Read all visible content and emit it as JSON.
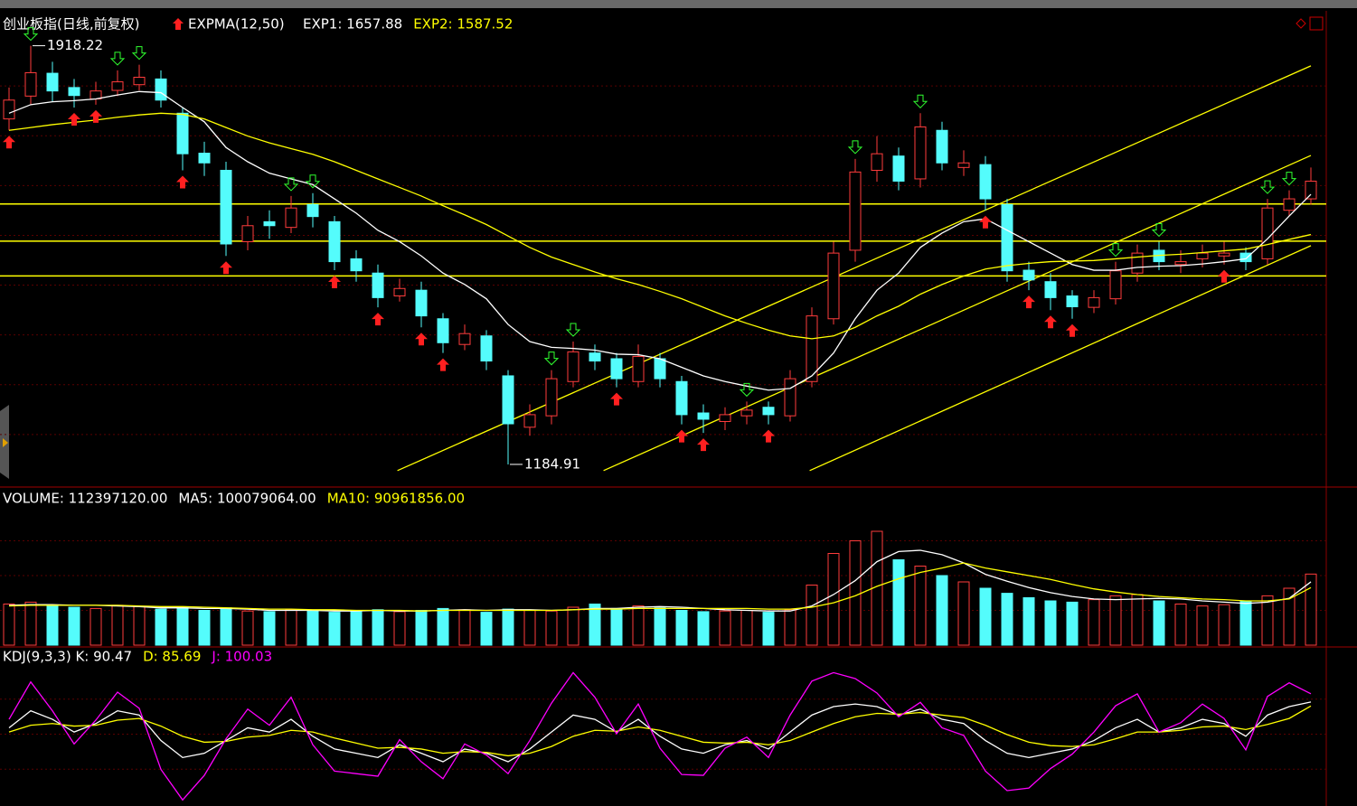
{
  "chart_data": [
    {
      "type": "candlestick",
      "title": "创业板指(日线,前复权)",
      "indicator": "EXPMA(12,50)",
      "legend": [
        {
          "text": "EXP1: 1657.88",
          "color": "#ffffff"
        },
        {
          "text": "EXP2: 1587.52",
          "color": "#ffff00"
        }
      ],
      "open": [
        1790,
        1830,
        1870,
        1845,
        1825,
        1840,
        1850,
        1860,
        1800,
        1730,
        1700,
        1575,
        1610,
        1600,
        1640,
        1610,
        1545,
        1520,
        1480,
        1490,
        1440,
        1395,
        1410,
        1340,
        1250,
        1270,
        1330,
        1380,
        1370,
        1330,
        1370,
        1330,
        1275,
        1260,
        1270,
        1285,
        1270,
        1330,
        1440,
        1560,
        1700,
        1725,
        1685,
        1770,
        1705,
        1710,
        1640,
        1525,
        1505,
        1480,
        1460,
        1475,
        1520,
        1560,
        1535,
        1545,
        1550,
        1555,
        1545,
        1630,
        1650
      ],
      "high": [
        1845,
        1918.22,
        1890,
        1860,
        1855,
        1875,
        1885,
        1875,
        1810,
        1750,
        1715,
        1620,
        1630,
        1655,
        1660,
        1620,
        1560,
        1535,
        1510,
        1505,
        1450,
        1430,
        1420,
        1350,
        1290,
        1350,
        1400,
        1395,
        1380,
        1395,
        1380,
        1340,
        1290,
        1285,
        1295,
        1295,
        1350,
        1460,
        1575,
        1720,
        1760,
        1740,
        1800,
        1785,
        1735,
        1725,
        1650,
        1540,
        1520,
        1490,
        1490,
        1540,
        1570,
        1575,
        1560,
        1570,
        1575,
        1565,
        1650,
        1665,
        1705
      ],
      "low": [
        1770,
        1815,
        1820,
        1810,
        1815,
        1830,
        1840,
        1810,
        1700,
        1690,
        1550,
        1560,
        1580,
        1590,
        1600,
        1525,
        1505,
        1460,
        1470,
        1425,
        1380,
        1385,
        1350,
        1184.91,
        1235,
        1255,
        1320,
        1350,
        1320,
        1320,
        1320,
        1255,
        1240,
        1245,
        1255,
        1255,
        1260,
        1320,
        1430,
        1540,
        1680,
        1665,
        1670,
        1700,
        1690,
        1630,
        1505,
        1490,
        1455,
        1440,
        1450,
        1465,
        1505,
        1525,
        1520,
        1530,
        1535,
        1525,
        1535,
        1620,
        1640
      ],
      "close": [
        1823,
        1871,
        1839,
        1831,
        1839,
        1855,
        1863,
        1823,
        1729,
        1713,
        1571,
        1603,
        1603,
        1634,
        1619,
        1540,
        1524,
        1477,
        1493,
        1445,
        1398,
        1414,
        1366,
        1256,
        1272,
        1335,
        1382,
        1366,
        1335,
        1374,
        1335,
        1272,
        1264,
        1272,
        1280,
        1272,
        1335,
        1445,
        1555,
        1697,
        1729,
        1681,
        1776,
        1713,
        1713,
        1650,
        1524,
        1508,
        1477,
        1461,
        1477,
        1524,
        1555,
        1540,
        1540,
        1555,
        1555,
        1540,
        1634,
        1650,
        1681
      ],
      "up_color": "#ff3c3c",
      "down_color": "#54fcfc",
      "series": [
        {
          "color": "#ffffff",
          "values": [
            1800,
            1815,
            1820,
            1822,
            1825,
            1832,
            1838,
            1836,
            1810,
            1785,
            1740,
            1715,
            1695,
            1685,
            1675,
            1650,
            1625,
            1595,
            1575,
            1550,
            1520,
            1500,
            1475,
            1430,
            1400,
            1390,
            1388,
            1385,
            1378,
            1377,
            1370,
            1355,
            1340,
            1330,
            1322,
            1315,
            1318,
            1340,
            1380,
            1440,
            1490,
            1520,
            1565,
            1590,
            1610,
            1615,
            1595,
            1575,
            1555,
            1535,
            1525,
            1525,
            1530,
            1532,
            1533,
            1536,
            1540,
            1545,
            1580,
            1620,
            1657.88
          ]
        },
        {
          "color": "#ffff00",
          "values": [
            1770,
            1775,
            1780,
            1784,
            1788,
            1793,
            1797,
            1800,
            1798,
            1790,
            1775,
            1760,
            1748,
            1738,
            1728,
            1715,
            1700,
            1685,
            1670,
            1655,
            1638,
            1622,
            1605,
            1585,
            1565,
            1548,
            1535,
            1522,
            1510,
            1500,
            1488,
            1475,
            1460,
            1445,
            1432,
            1420,
            1410,
            1405,
            1410,
            1425,
            1445,
            1462,
            1483,
            1500,
            1515,
            1527,
            1533,
            1537,
            1540,
            1541,
            1542,
            1545,
            1548,
            1551,
            1553,
            1556,
            1559,
            1562,
            1570,
            1579,
            1587.52
          ]
        }
      ],
      "ylim": [
        1150,
        1935
      ],
      "hlines": [
        1641,
        1576,
        1515
      ],
      "trend_lines": [
        {
          "x": [
            17.9,
            60
          ],
          "y": [
            1174,
            1883
          ]
        },
        {
          "x": [
            27.4,
            60
          ],
          "y": [
            1174,
            1726
          ]
        },
        {
          "x": [
            36.9,
            60
          ],
          "y": [
            1174,
            1568
          ]
        }
      ],
      "line_color": "#ffff00",
      "annotations": [
        {
          "text": "1918.22",
          "x": 1,
          "value": 1918.22
        },
        {
          "text": "1184.91",
          "x": 23,
          "value": 1184.91
        }
      ],
      "buy_signals": [
        0,
        3,
        4,
        8,
        10,
        15,
        17,
        19,
        20,
        28,
        31,
        32,
        35,
        45,
        47,
        48,
        49,
        56
      ],
      "sell_signals": [
        1,
        5,
        6,
        13,
        14,
        25,
        26,
        34,
        39,
        42,
        51,
        53,
        58,
        59
      ]
    },
    {
      "type": "volume",
      "legend": [
        {
          "text": "VOLUME: 112397120.00",
          "color": "#ffffff"
        },
        {
          "text": "MA5: 100079064.00",
          "color": "#ffffff"
        },
        {
          "text": "MA10: 90961856.00",
          "color": "#ffff00"
        }
      ],
      "values": [
        65000000.0,
        68000000.0,
        62000000.0,
        60000000.0,
        58000000.0,
        63000000.0,
        61000000.0,
        57000000.0,
        60000000.0,
        55000000.0,
        59000000.0,
        54000000.0,
        53000000.0,
        56000000.0,
        55000000.0,
        52000000.0,
        54000000.0,
        56000000.0,
        53000000.0,
        55000000.0,
        58000000.0,
        56000000.0,
        52000000.0,
        57000000.0,
        55000000.0,
        54000000.0,
        60000000.0,
        65000000.0,
        58000000.0,
        62000000.0,
        59000000.0,
        55000000.0,
        53000000.0,
        54000000.0,
        55000000.0,
        52000000.0,
        56000000.0,
        95000000.0,
        145000000.0,
        165000000.0,
        180000000.0,
        135000000.0,
        125000000.0,
        110000000.0,
        100000000.0,
        90000000.0,
        82000000.0,
        75000000.0,
        70000000.0,
        68000000.0,
        72000000.0,
        78000000.0,
        80000000.0,
        70000000.0,
        65000000.0,
        62000000.0,
        64000000.0,
        70000000.0,
        78000000.0,
        90000000.0,
        112397120
      ],
      "series": [
        {
          "color": "#ffffff",
          "values": [
            63000000.0,
            64000000.0,
            64000000.0,
            63000000.0,
            63000000.0,
            62000000.0,
            61000000.0,
            59000000.0,
            59000000.0,
            58000000.0,
            58000000.0,
            57000000.0,
            55000000.0,
            55000000.0,
            55000000.0,
            54000000.0,
            54000000.0,
            55000000.0,
            54000000.0,
            54000000.0,
            55000000.0,
            56000000.0,
            55000000.0,
            56000000.0,
            56000000.0,
            55000000.0,
            56000000.0,
            58000000.0,
            58000000.0,
            60000000.0,
            61000000.0,
            60000000.0,
            58000000.0,
            56000000.0,
            55000000.0,
            54000000.0,
            54000000.0,
            62000000.0,
            80000000.0,
            102000000.0,
            132000000.0,
            148000000.0,
            150000000.0,
            143000000.0,
            130000000.0,
            112000000.0,
            101000000.0,
            91000000.0,
            83000000.0,
            77000000.0,
            73000000.0,
            72000000.0,
            73000000.0,
            74000000.0,
            73000000.0,
            70000000.0,
            68000000.0,
            66000000.0,
            68000000.0,
            74000000.0,
            100079064
          ]
        },
        {
          "color": "#ffff00",
          "values": [
            62000000.0,
            63000000.0,
            63000000.0,
            63000000.0,
            63000000.0,
            63000000.0,
            62000000.0,
            61000000.0,
            61000000.0,
            60000000.0,
            59000000.0,
            58000000.0,
            57000000.0,
            57000000.0,
            56000000.0,
            56000000.0,
            55000000.0,
            55000000.0,
            55000000.0,
            54000000.0,
            55000000.0,
            55000000.0,
            55000000.0,
            55000000.0,
            55000000.0,
            55000000.0,
            56000000.0,
            57000000.0,
            57000000.0,
            58000000.0,
            58000000.0,
            58000000.0,
            58000000.0,
            58000000.0,
            58000000.0,
            57000000.0,
            57000000.0,
            60000000.0,
            67000000.0,
            78000000.0,
            93000000.0,
            105000000.0,
            115000000.0,
            122000000.0,
            130000000.0,
            122000000.0,
            116000000.0,
            110000000.0,
            104000000.0,
            96000000.0,
            89000000.0,
            84000000.0,
            80000000.0,
            77000000.0,
            75000000.0,
            73000000.0,
            72000000.0,
            70000000.0,
            70000000.0,
            73000000.0,
            90961856
          ]
        }
      ],
      "ylim": [
        0,
        220000000.0
      ]
    },
    {
      "type": "line",
      "legend": [
        {
          "text": "KDJ(9,3,3) K: 90.47",
          "color": "#ffffff"
        },
        {
          "text": "D: 85.69",
          "color": "#ffff00"
        },
        {
          "text": "J: 100.03",
          "color": "#ff00ff"
        }
      ],
      "series": [
        {
          "color": "#ffffff",
          "values": [
            60,
            80,
            70,
            55,
            65,
            80,
            75,
            45,
            25,
            30,
            45,
            60,
            55,
            70,
            50,
            35,
            30,
            25,
            40,
            30,
            20,
            35,
            30,
            20,
            35,
            55,
            75,
            70,
            55,
            70,
            50,
            35,
            30,
            40,
            45,
            35,
            55,
            75,
            85,
            88,
            85,
            75,
            82,
            70,
            65,
            45,
            30,
            25,
            30,
            35,
            45,
            60,
            70,
            55,
            60,
            70,
            65,
            50,
            75,
            85,
            90.47
          ]
        },
        {
          "color": "#ffff00",
          "values": [
            55,
            63,
            65,
            62,
            63,
            69,
            71,
            62,
            50,
            43,
            44,
            49,
            51,
            57,
            55,
            48,
            42,
            36,
            37,
            35,
            30,
            32,
            31,
            27,
            30,
            38,
            50,
            57,
            56,
            61,
            57,
            50,
            43,
            42,
            43,
            40,
            45,
            55,
            65,
            73,
            77,
            76,
            78,
            75,
            72,
            63,
            52,
            43,
            39,
            38,
            40,
            47,
            55,
            55,
            57,
            61,
            62,
            58,
            64,
            71,
            85.69
          ]
        },
        {
          "color": "#ff00ff",
          "values": [
            70,
            114,
            80,
            41,
            69,
            102,
            83,
            11,
            -25,
            4,
            47,
            82,
            63,
            96,
            40,
            9,
            6,
            3,
            46,
            20,
            0,
            41,
            28,
            6,
            45,
            89,
            125,
            96,
            53,
            88,
            36,
            5,
            4,
            36,
            49,
            25,
            75,
            115,
            125,
            118,
            101,
            73,
            90,
            60,
            51,
            9,
            -14,
            -11,
            12,
            29,
            55,
            86,
            100,
            55,
            66,
            88,
            71,
            34,
            97,
            113,
            100.03
          ]
        }
      ],
      "ylim": [
        -30,
        135
      ]
    }
  ]
}
